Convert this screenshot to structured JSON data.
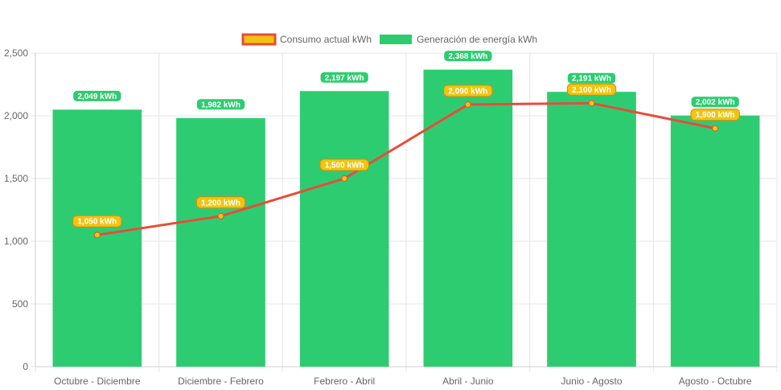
{
  "chart_data": {
    "type": "bar",
    "categories": [
      "Octubre - Diciembre",
      "Diciembre - Febrero",
      "Febrero - Abril",
      "Abril - Junio",
      "Junio - Agosto",
      "Agosto - Octubre"
    ],
    "series": [
      {
        "name": "Generación de energía kWh",
        "type": "bar",
        "values": [
          2049,
          1982,
          2197,
          2368,
          2191,
          2002
        ],
        "labels": [
          "2,049 kWh",
          "1,982 kWh",
          "2,197 kWh",
          "2,368 kWh",
          "2,191 kWh",
          "2,002 kWh"
        ],
        "color": "#2ecc71"
      },
      {
        "name": "Consumo actual kWh",
        "type": "line",
        "values": [
          1050,
          1200,
          1500,
          2090,
          2100,
          1900
        ],
        "labels": [
          "1,050 kWh",
          "1,200 kWh",
          "1,500 kWh",
          "2,090 kWh",
          "2,100 kWh",
          "1,900 kWh"
        ],
        "color": "#e74c3c",
        "point_color": "#f1c40f"
      }
    ],
    "yticks": [
      "0",
      "500",
      "1,000",
      "1,500",
      "2,000",
      "2,500"
    ],
    "ylim": [
      0,
      2500
    ],
    "grid": true,
    "legend_position": "top-center"
  }
}
